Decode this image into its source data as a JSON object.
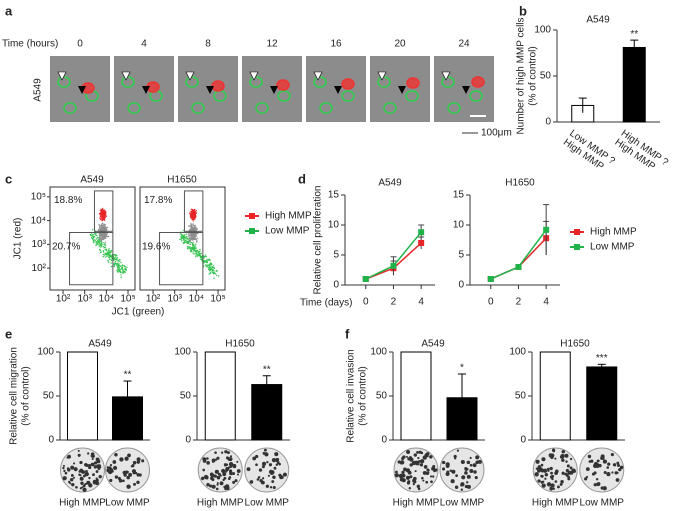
{
  "time_lapse": {
    "panel_label": "a",
    "axis_label": "Time (hours)",
    "times": [
      0,
      4,
      8,
      12,
      16,
      20,
      24
    ],
    "row_label": "A549",
    "scale_bar": "100μm"
  },
  "chart_data": [
    {
      "type": "bar",
      "panel_label": "b",
      "title": "A549",
      "ylabel": [
        "Number of high MMP cells",
        "(% of control)"
      ],
      "categories": [
        "Low MMP ?\nHigh MMP",
        "High MMP ?\nHigh MMP"
      ],
      "values": [
        18,
        81
      ],
      "errors": [
        8,
        8
      ],
      "colors": [
        "#ffffff",
        "#000000"
      ],
      "significance": [
        null,
        "**"
      ],
      "ylim": [
        0,
        100
      ],
      "yticks": [
        0,
        50,
        100
      ]
    },
    {
      "type": "flow",
      "panel_label": "c",
      "title": "A549",
      "xlabel": "JC1 (green)",
      "ylabel": "JC1 (red)",
      "log_scale": true,
      "xlim": [
        25,
        210000
      ],
      "ylim": [
        12,
        260000
      ],
      "xticks": [
        {
          "value": 100,
          "label": "10²"
        },
        {
          "value": 1000,
          "label": "10³"
        },
        {
          "value": 10000,
          "label": "10⁴"
        },
        {
          "value": 100000,
          "label": "10⁵"
        }
      ],
      "yticks": [
        {
          "value": 100,
          "label": "10²"
        },
        {
          "value": 1000,
          "label": "10³"
        },
        {
          "value": 10000,
          "label": "10⁴"
        },
        {
          "value": 100000,
          "label": "10⁵"
        }
      ],
      "gates": [
        "18.8%",
        "20.7%"
      ]
    },
    {
      "type": "flow",
      "title": "H1650",
      "log_scale": true,
      "xlim": [
        25,
        210000
      ],
      "ylim": [
        12,
        260000
      ],
      "xticks": [
        {
          "value": 100,
          "label": "10²"
        },
        {
          "value": 1000,
          "label": "10³"
        },
        {
          "value": 10000,
          "label": "10⁴"
        },
        {
          "value": 100000,
          "label": "10⁵"
        }
      ],
      "gates": [
        "17.8%",
        "19.6%"
      ],
      "series": [
        {
          "name": "High MMP",
          "color": "#e8262a"
        },
        {
          "name": "Low MMP",
          "color": "#1fb34a"
        }
      ]
    },
    {
      "type": "line",
      "panel_label": "d",
      "title": "A549",
      "ylabel": [
        "Relative  cell proliferation"
      ],
      "xlabel": "Time (days)",
      "x": [
        0,
        2,
        4
      ],
      "xlim": [
        -1.5,
        5
      ],
      "xticks": [
        0,
        2,
        4
      ],
      "ylim": [
        0,
        15
      ],
      "yticks": [
        0,
        5,
        10,
        15
      ],
      "series": [
        {
          "color": "#e8262a",
          "values": [
            1,
            2.8,
            7
          ],
          "errors": [
            0.2,
            1.2,
            1
          ]
        },
        {
          "color": "#1fb34a",
          "values": [
            1,
            3.2,
            8.8
          ],
          "errors": [
            0.2,
            1.5,
            1.2
          ]
        }
      ]
    },
    {
      "type": "line",
      "title": "H1650",
      "x": [
        0,
        2,
        4
      ],
      "xlim": [
        -1.5,
        5
      ],
      "xticks": [
        0,
        2,
        4
      ],
      "ylim": [
        0,
        15
      ],
      "yticks": [
        0,
        5,
        10,
        15
      ],
      "series": [
        {
          "name": "High MMP",
          "color": "#e8262a",
          "values": [
            1,
            3,
            7.8
          ],
          "errors": [
            0.2,
            0.3,
            2.8
          ]
        },
        {
          "name": "Low MMP",
          "color": "#1fb34a",
          "values": [
            1,
            3,
            9.2
          ],
          "errors": [
            0.2,
            0.3,
            4.2
          ]
        }
      ]
    },
    {
      "type": "bar",
      "panel_label": "e",
      "title": "A549",
      "ylabel": [
        "Relative  cell migration",
        "(% of control)"
      ],
      "categories": [
        "High MMP",
        "Low MMP"
      ],
      "values": [
        100,
        49
      ],
      "errors": [
        null,
        18
      ],
      "colors": [
        "#ffffff",
        "#000000"
      ],
      "significance": [
        null,
        "**"
      ],
      "ylim": [
        0,
        100
      ],
      "yticks": [
        0,
        50,
        100
      ]
    },
    {
      "type": "bar",
      "title": "H1650",
      "categories": [
        "High MMP",
        "Low MMP"
      ],
      "values": [
        100,
        63
      ],
      "errors": [
        null,
        10
      ],
      "colors": [
        "#ffffff",
        "#000000"
      ],
      "significance": [
        null,
        "**"
      ],
      "ylim": [
        0,
        100
      ],
      "yticks": [
        0,
        50,
        100
      ]
    },
    {
      "type": "bar",
      "panel_label": "f",
      "title": "A549",
      "ylabel": [
        "Relative  cell invasion",
        "(% of control)"
      ],
      "categories": [
        "High MMP",
        "Low MMP"
      ],
      "values": [
        100,
        48
      ],
      "errors": [
        null,
        27
      ],
      "colors": [
        "#ffffff",
        "#000000"
      ],
      "significance": [
        null,
        "*"
      ],
      "ylim": [
        0,
        100
      ],
      "yticks": [
        0,
        50,
        100
      ]
    },
    {
      "type": "bar",
      "title": "H1650",
      "categories": [
        "High MMP",
        "Low MMP"
      ],
      "values": [
        100,
        83
      ],
      "errors": [
        null,
        3
      ],
      "colors": [
        "#ffffff",
        "#000000"
      ],
      "significance": [
        null,
        "***"
      ],
      "ylim": [
        0,
        100
      ],
      "yticks": [
        0,
        50,
        100
      ]
    }
  ]
}
